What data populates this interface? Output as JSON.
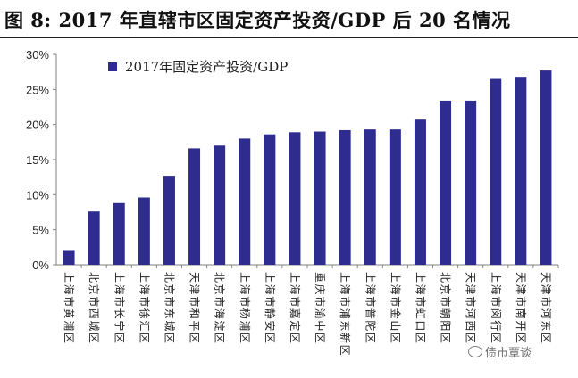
{
  "header": {
    "title": "图 8:  2017 年直辖市区固定资产投资/GDP 后 20 名情况"
  },
  "watermark": {
    "text": "债市覃谈",
    "icon": "wechat-icon"
  },
  "colors": {
    "bar": "#2e2c8f",
    "axis": "#7f7f7f",
    "text": "#222222"
  },
  "chart_data": {
    "type": "bar",
    "title": "图 8:  2017 年直辖市区固定资产投资/GDP 后 20 名情况",
    "xlabel": "",
    "ylabel": "",
    "ylim": [
      0,
      30
    ],
    "yticks": [
      "0%",
      "5%",
      "10%",
      "15%",
      "20%",
      "25%",
      "30%"
    ],
    "grid": false,
    "legend": {
      "position": "top-left",
      "entries": [
        "2017年固定资产投资/GDP"
      ]
    },
    "categories": [
      "上海市黄浦区",
      "北京市西城区",
      "上海市长宁区",
      "上海市徐汇区",
      "北京市东城区",
      "天津市和平区",
      "北京市海淀区",
      "上海市杨浦区",
      "上海市静安区",
      "上海市嘉定区",
      "重庆市渝中区",
      "上海市浦东新区",
      "上海市普陀区",
      "上海市金山区",
      "上海市虹口区",
      "北京市朝阳区",
      "天津市河西区",
      "上海市闵行区",
      "天津市南开区",
      "天津市河东区"
    ],
    "series": [
      {
        "name": "2017年固定资产投资/GDP",
        "values": [
          2.1,
          7.6,
          8.8,
          9.6,
          12.7,
          16.6,
          17.0,
          18.0,
          18.6,
          18.9,
          19.0,
          19.2,
          19.3,
          19.3,
          20.7,
          23.4,
          23.4,
          26.5,
          26.8,
          27.7
        ]
      }
    ]
  }
}
